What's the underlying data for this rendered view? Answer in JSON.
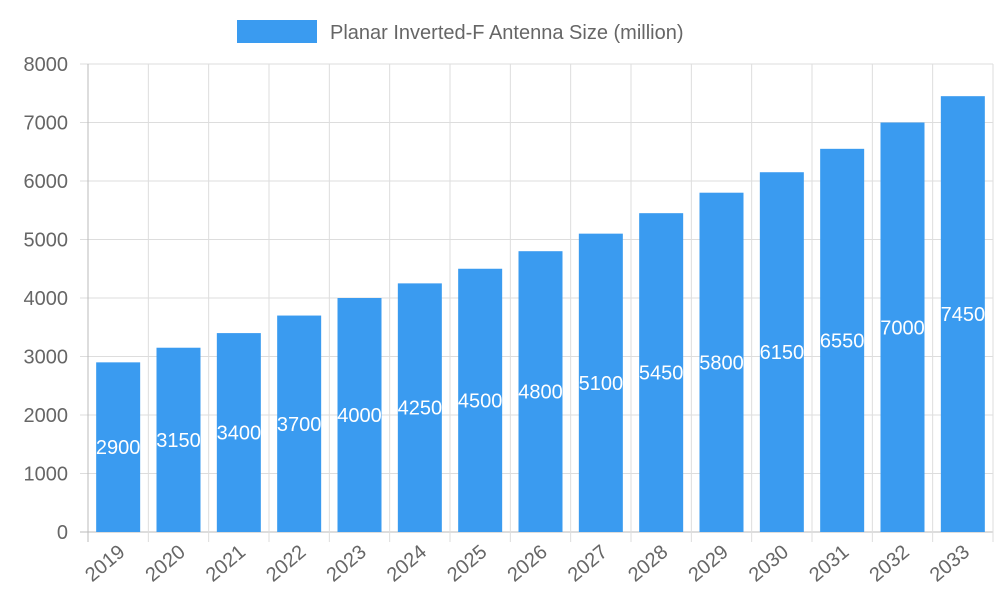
{
  "chart_data": {
    "type": "bar",
    "title": "",
    "xlabel": "",
    "ylabel": "",
    "legend": {
      "position": "top",
      "entries": [
        "Planar Inverted-F Antenna Size (million)"
      ]
    },
    "categories": [
      "2019",
      "2020",
      "2021",
      "2022",
      "2023",
      "2024",
      "2025",
      "2026",
      "2027",
      "2028",
      "2029",
      "2030",
      "2031",
      "2032",
      "2033"
    ],
    "series": [
      {
        "name": "Planar Inverted-F Antenna Size (million)",
        "values": [
          2900,
          3150,
          3400,
          3700,
          4000,
          4250,
          4500,
          4800,
          5100,
          5450,
          5800,
          6150,
          6550,
          7000,
          7450
        ],
        "color": "#3a9bf0"
      }
    ],
    "ylim": [
      0,
      8000
    ],
    "yticks": [
      0,
      1000,
      2000,
      3000,
      4000,
      5000,
      6000,
      7000,
      8000
    ],
    "grid": true,
    "data_labels": true
  }
}
